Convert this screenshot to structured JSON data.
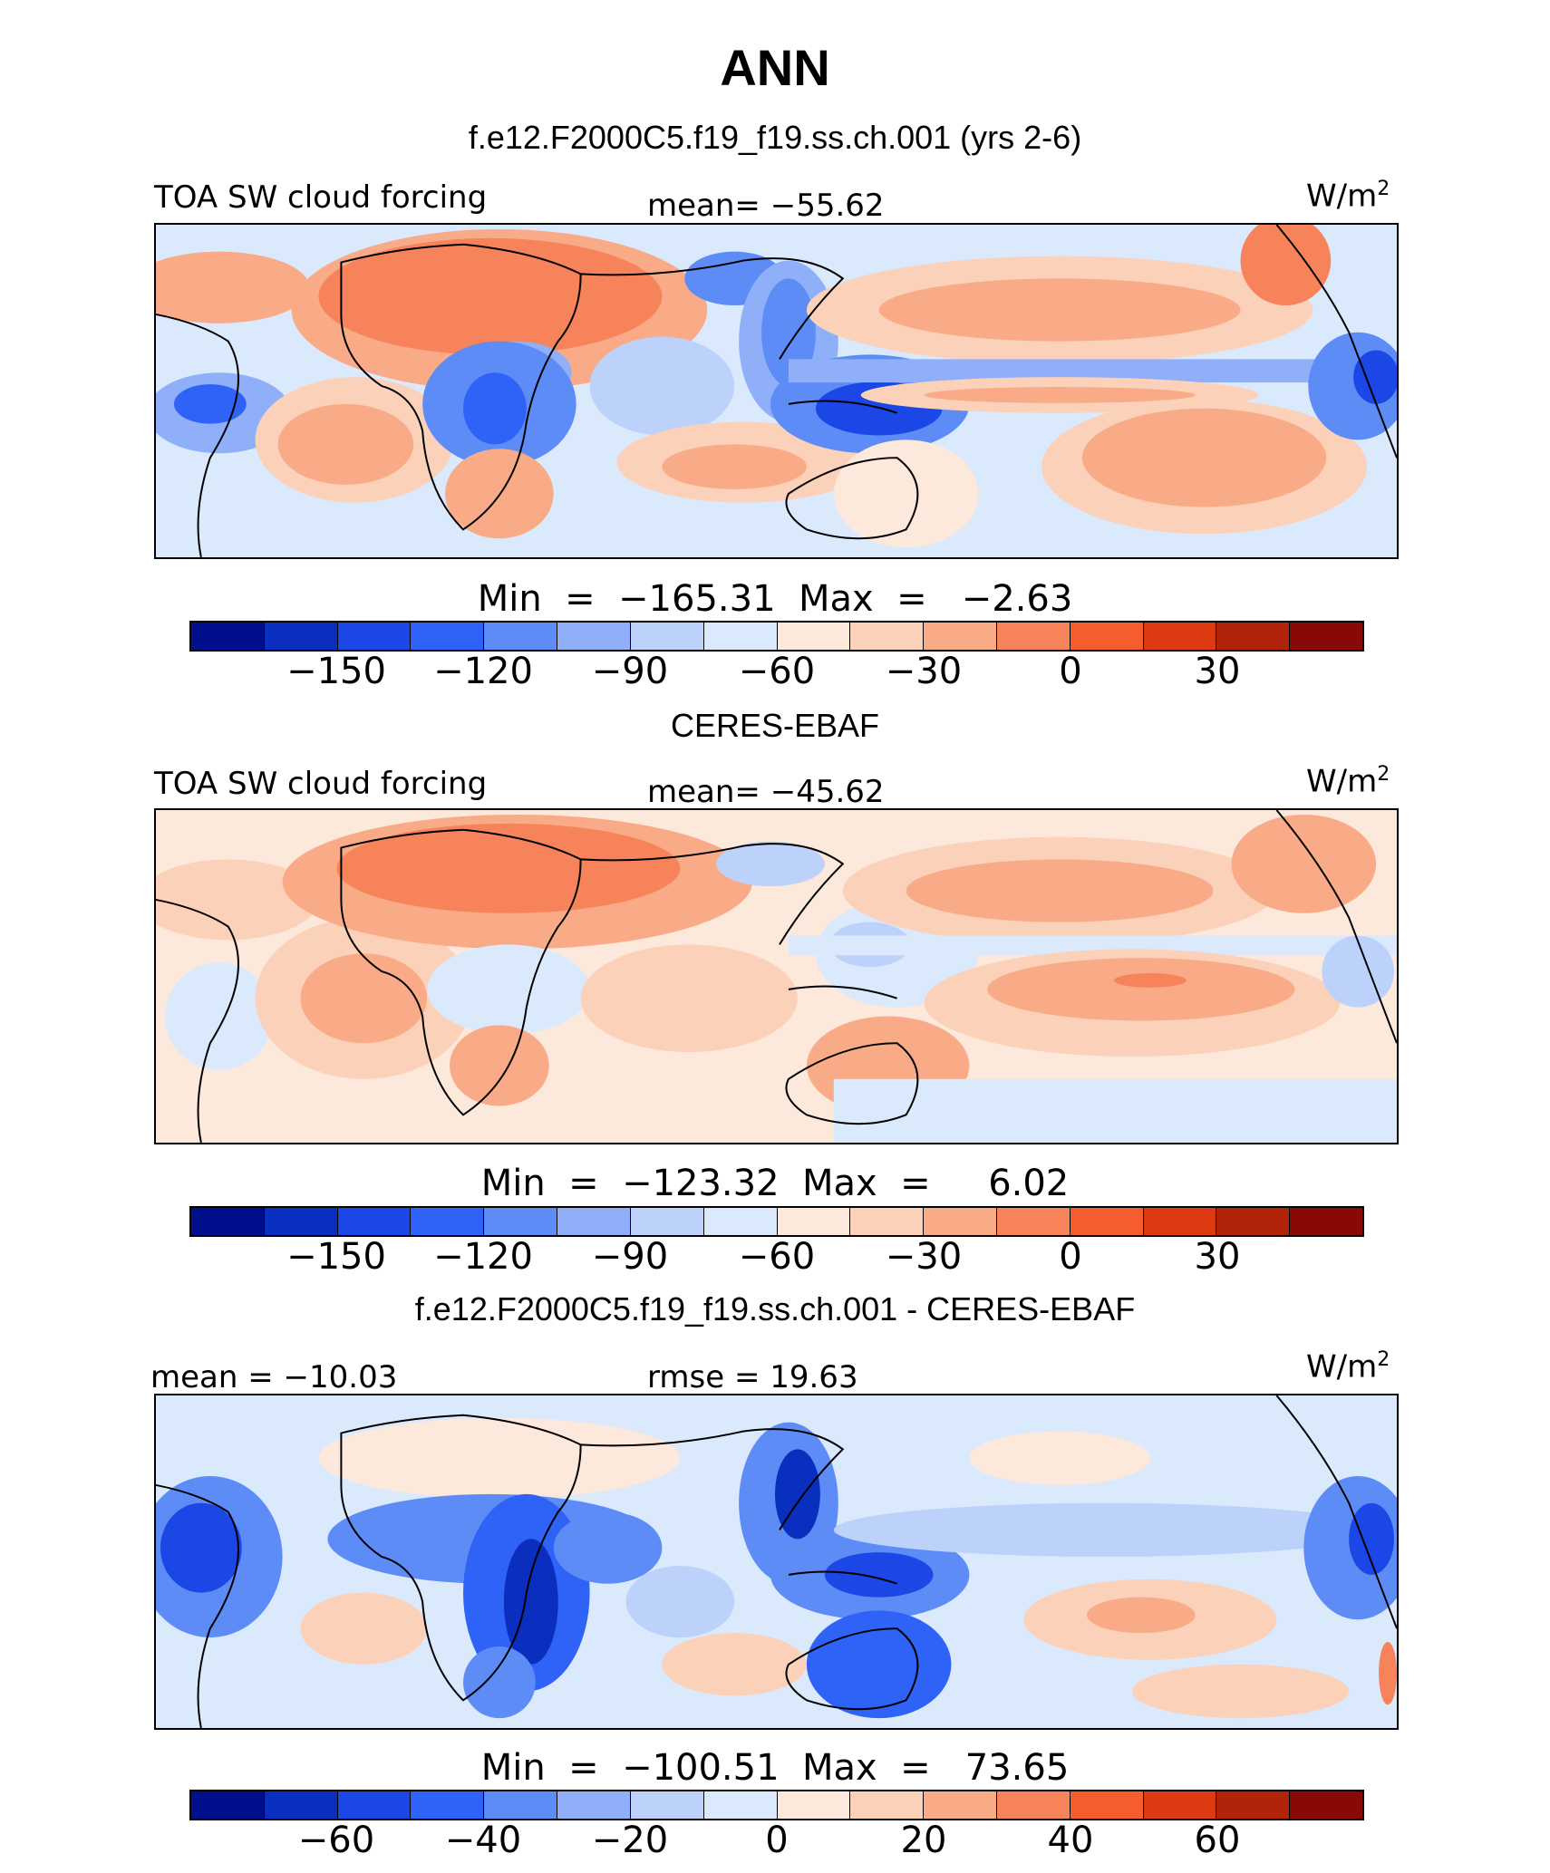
{
  "title": "ANN",
  "panels": [
    {
      "heading": "f.e12.F2000C5.f19_f19.ss.ch.001 (yrs 2-6)",
      "left_label": "TOA SW cloud forcing",
      "center_label": "mean=  −55.62",
      "units": "W/m",
      "units_sup": "2",
      "minmax": "Min  =  −165.31  Max  =   −2.63",
      "ticks": [
        "−150",
        "−120",
        "−90",
        "−60",
        "−30",
        "0",
        "30"
      ],
      "palette": "model"
    },
    {
      "heading": "CERES-EBAF",
      "left_label": "TOA SW cloud forcing",
      "center_label": "mean=  −45.62",
      "units": "W/m",
      "units_sup": "2",
      "minmax": "Min  =  −123.32  Max  =     6.02",
      "ticks": [
        "−150",
        "−120",
        "−90",
        "−60",
        "−30",
        "0",
        "30"
      ],
      "palette": "obs"
    },
    {
      "heading": "f.e12.F2000C5.f19_f19.ss.ch.001 - CERES-EBAF",
      "left_label": "mean  =  −10.03",
      "center_label": "rmse  =   19.63",
      "units": "W/m",
      "units_sup": "2",
      "minmax": "Min  =  −100.51  Max  =   73.65",
      "ticks": [
        "−60",
        "−40",
        "−20",
        "0",
        "20",
        "40",
        "60"
      ],
      "palette": "diff"
    }
  ],
  "colorbar_colors": [
    "#000f8c",
    "#0a2fbe",
    "#1a47e6",
    "#2f62f7",
    "#5e8cf7",
    "#8fb0f9",
    "#bcd2fb",
    "#dbe9fd",
    "#fde8dc",
    "#fcd1b9",
    "#f9ab88",
    "#f7835a",
    "#f45e2e",
    "#dd3a14",
    "#b22409",
    "#880a06"
  ]
}
